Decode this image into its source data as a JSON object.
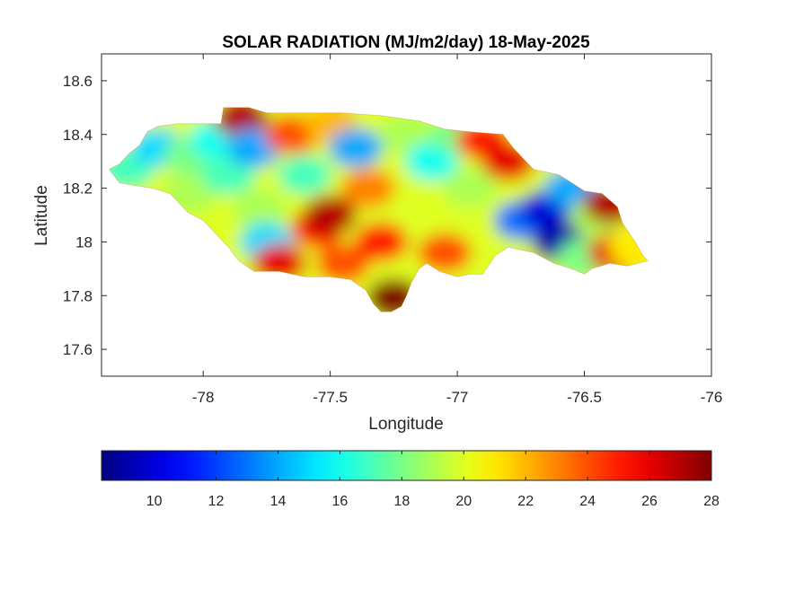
{
  "chart_data": {
    "type": "heatmap",
    "title": "SOLAR RADIATION (MJ/m2/day) 18-May-2025",
    "xlabel": "Longitude",
    "ylabel": "Latitude",
    "xlim": [
      -78.4,
      -76
    ],
    "ylim": [
      17.5,
      18.7
    ],
    "x_ticks": [
      -78,
      -77.5,
      -77,
      -76.5,
      -76
    ],
    "x_tick_labels": [
      "-78",
      "-77.5",
      "-77",
      "-76.5",
      "-76"
    ],
    "y_ticks": [
      17.6,
      17.8,
      18,
      18.2,
      18.4,
      18.6
    ],
    "y_tick_labels": [
      "17.6",
      "17.8",
      "18",
      "18.2",
      "18.4",
      "18.6"
    ],
    "colorbar": {
      "range": [
        8.3,
        28
      ],
      "ticks": [
        10,
        12,
        14,
        16,
        18,
        20,
        22,
        24,
        26,
        28
      ],
      "tick_labels": [
        "10",
        "12",
        "14",
        "16",
        "18",
        "20",
        "22",
        "24",
        "26",
        "28"
      ],
      "colormap": "jet",
      "colors": [
        "#00008f",
        "#0000ff",
        "#00ffff",
        "#ffff00",
        "#ff0000",
        "#800000"
      ]
    },
    "grid": false,
    "region_outline": [
      [
        -78.37,
        18.27
      ],
      [
        -78.33,
        18.29
      ],
      [
        -78.29,
        18.33
      ],
      [
        -78.25,
        18.36
      ],
      [
        -78.22,
        18.41
      ],
      [
        -78.18,
        18.43
      ],
      [
        -78.1,
        18.44
      ],
      [
        -78.0,
        18.44
      ],
      [
        -77.93,
        18.44
      ],
      [
        -77.92,
        18.5
      ],
      [
        -77.82,
        18.5
      ],
      [
        -77.75,
        18.48
      ],
      [
        -77.6,
        18.48
      ],
      [
        -77.45,
        18.48
      ],
      [
        -77.3,
        18.47
      ],
      [
        -77.15,
        18.45
      ],
      [
        -77.05,
        18.42
      ],
      [
        -76.95,
        18.41
      ],
      [
        -76.82,
        18.4
      ],
      [
        -76.78,
        18.35
      ],
      [
        -76.74,
        18.31
      ],
      [
        -76.7,
        18.27
      ],
      [
        -76.6,
        18.25
      ],
      [
        -76.5,
        18.19
      ],
      [
        -76.43,
        18.18
      ],
      [
        -76.37,
        18.13
      ],
      [
        -76.35,
        18.07
      ],
      [
        -76.3,
        18.0
      ],
      [
        -76.27,
        17.95
      ],
      [
        -76.25,
        17.93
      ],
      [
        -76.33,
        17.91
      ],
      [
        -76.4,
        17.92
      ],
      [
        -76.47,
        17.9
      ],
      [
        -76.5,
        17.88
      ],
      [
        -76.55,
        17.9
      ],
      [
        -76.62,
        17.92
      ],
      [
        -76.7,
        17.96
      ],
      [
        -76.8,
        17.98
      ],
      [
        -76.85,
        17.95
      ],
      [
        -76.9,
        17.88
      ],
      [
        -76.95,
        17.88
      ],
      [
        -77.0,
        17.87
      ],
      [
        -77.07,
        17.89
      ],
      [
        -77.12,
        17.92
      ],
      [
        -77.15,
        17.9
      ],
      [
        -77.18,
        17.85
      ],
      [
        -77.2,
        17.8
      ],
      [
        -77.22,
        17.76
      ],
      [
        -77.26,
        17.74
      ],
      [
        -77.3,
        17.74
      ],
      [
        -77.33,
        17.77
      ],
      [
        -77.36,
        17.82
      ],
      [
        -77.42,
        17.86
      ],
      [
        -77.5,
        17.87
      ],
      [
        -77.6,
        17.87
      ],
      [
        -77.7,
        17.89
      ],
      [
        -77.8,
        17.89
      ],
      [
        -77.86,
        17.93
      ],
      [
        -77.9,
        17.98
      ],
      [
        -78.0,
        18.08
      ],
      [
        -78.06,
        18.11
      ],
      [
        -78.13,
        18.18
      ],
      [
        -78.2,
        18.2
      ],
      [
        -78.27,
        18.21
      ],
      [
        -78.33,
        18.22
      ],
      [
        -78.37,
        18.27
      ]
    ],
    "field_samples": [
      {
        "lon": -78.3,
        "lat": 18.27,
        "value": 17
      },
      {
        "lon": -78.18,
        "lat": 18.35,
        "value": 15
      },
      {
        "lon": -78.05,
        "lat": 18.32,
        "value": 18
      },
      {
        "lon": -78.05,
        "lat": 18.18,
        "value": 19
      },
      {
        "lon": -77.95,
        "lat": 18.38,
        "value": 16
      },
      {
        "lon": -77.9,
        "lat": 18.25,
        "value": 17
      },
      {
        "lon": -77.85,
        "lat": 18.46,
        "value": 27
      },
      {
        "lon": -77.8,
        "lat": 18.35,
        "value": 14
      },
      {
        "lon": -77.78,
        "lat": 18.12,
        "value": 19
      },
      {
        "lon": -77.75,
        "lat": 18.0,
        "value": 15
      },
      {
        "lon": -77.7,
        "lat": 17.92,
        "value": 26
      },
      {
        "lon": -77.65,
        "lat": 18.4,
        "value": 24
      },
      {
        "lon": -77.6,
        "lat": 18.25,
        "value": 17
      },
      {
        "lon": -77.55,
        "lat": 18.05,
        "value": 25
      },
      {
        "lon": -77.5,
        "lat": 18.1,
        "value": 27
      },
      {
        "lon": -77.5,
        "lat": 18.44,
        "value": 22
      },
      {
        "lon": -77.45,
        "lat": 17.92,
        "value": 24
      },
      {
        "lon": -77.4,
        "lat": 18.35,
        "value": 14
      },
      {
        "lon": -77.35,
        "lat": 18.2,
        "value": 23
      },
      {
        "lon": -77.3,
        "lat": 18.0,
        "value": 25
      },
      {
        "lon": -77.25,
        "lat": 17.79,
        "value": 28
      },
      {
        "lon": -77.2,
        "lat": 18.4,
        "value": 19
      },
      {
        "lon": -77.15,
        "lat": 18.15,
        "value": 20
      },
      {
        "lon": -77.1,
        "lat": 18.3,
        "value": 16
      },
      {
        "lon": -77.05,
        "lat": 17.96,
        "value": 24
      },
      {
        "lon": -77.0,
        "lat": 18.4,
        "value": 18
      },
      {
        "lon": -76.95,
        "lat": 18.2,
        "value": 19
      },
      {
        "lon": -76.9,
        "lat": 18.38,
        "value": 25
      },
      {
        "lon": -76.85,
        "lat": 18.05,
        "value": 20
      },
      {
        "lon": -76.8,
        "lat": 18.3,
        "value": 26
      },
      {
        "lon": -76.75,
        "lat": 18.08,
        "value": 13
      },
      {
        "lon": -76.65,
        "lat": 18.12,
        "value": 10
      },
      {
        "lon": -76.6,
        "lat": 18.0,
        "value": 9
      },
      {
        "lon": -76.55,
        "lat": 18.2,
        "value": 14
      },
      {
        "lon": -76.5,
        "lat": 17.94,
        "value": 18
      },
      {
        "lon": -76.45,
        "lat": 18.1,
        "value": 19
      },
      {
        "lon": -76.4,
        "lat": 18.14,
        "value": 27
      },
      {
        "lon": -76.38,
        "lat": 17.96,
        "value": 26
      },
      {
        "lon": -76.3,
        "lat": 17.98,
        "value": 21
      }
    ]
  }
}
